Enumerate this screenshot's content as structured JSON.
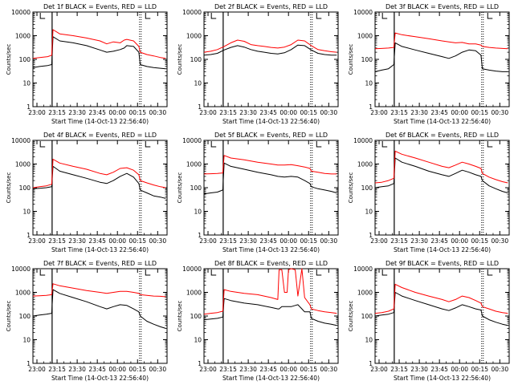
{
  "figure": {
    "colors": {
      "black_series": "#000000",
      "red_series": "#ff0000",
      "background": "#ffffff"
    }
  },
  "chart_data": [
    {
      "type": "line",
      "title": "Det 1f BLACK = Events, RED = LLD",
      "xlabel": "Start Time (14-Oct-13 22:56:40)",
      "ylabel": "Counts/sec",
      "x_ticks": [
        "23:00",
        "23:15",
        "23:30",
        "23:45",
        "00:00",
        "00:15",
        "00:30"
      ],
      "y_ticks": [
        "1",
        "10",
        "100",
        "1000",
        "10000"
      ],
      "yscale": "log",
      "ylim": [
        1,
        10000
      ],
      "grid": false,
      "x_minutes": [
        0,
        5,
        11,
        14,
        15,
        20,
        30,
        40,
        50,
        55,
        60,
        65,
        68,
        70,
        75,
        79,
        80,
        85,
        90,
        95,
        99
      ],
      "series": [
        {
          "color": "black",
          "values": [
            45,
            50,
            55,
            60,
            900,
            600,
            500,
            380,
            250,
            200,
            220,
            260,
            300,
            380,
            350,
            200,
            60,
            50,
            45,
            42,
            40
          ]
        },
        {
          "color": "red",
          "values": [
            110,
            120,
            130,
            150,
            1800,
            1200,
            1000,
            800,
            600,
            450,
            550,
            500,
            650,
            700,
            600,
            350,
            200,
            160,
            140,
            120,
            110
          ]
        }
      ]
    },
    {
      "type": "line",
      "title": "Det 2f BLACK = Events, RED = LLD",
      "xlabel": "Start Time (14-Oct-13 22:56:40)",
      "ylabel": "Counts/sec",
      "x_ticks": [
        "23:00",
        "23:15",
        "23:30",
        "23:45",
        "00:00",
        "00:15",
        "00:30"
      ],
      "y_ticks": [
        "1",
        "10",
        "100",
        "1000",
        "10000"
      ],
      "yscale": "log",
      "ylim": [
        1,
        10000
      ],
      "grid": false,
      "x_minutes": [
        0,
        5,
        10,
        15,
        20,
        25,
        30,
        35,
        40,
        45,
        50,
        55,
        60,
        65,
        70,
        75,
        80,
        85,
        90,
        95,
        99
      ],
      "series": [
        {
          "color": "black",
          "values": [
            150,
            160,
            180,
            250,
            320,
            380,
            330,
            260,
            220,
            200,
            180,
            170,
            190,
            260,
            400,
            380,
            250,
            180,
            160,
            150,
            150
          ]
        },
        {
          "color": "red",
          "values": [
            200,
            220,
            260,
            350,
            500,
            650,
            580,
            420,
            380,
            350,
            320,
            300,
            330,
            420,
            650,
            600,
            380,
            260,
            230,
            210,
            200
          ]
        }
      ]
    },
    {
      "type": "line",
      "title": "Det 3f BLACK = Events, RED = LLD",
      "xlabel": "Start Time (14-Oct-13 22:56:40)",
      "ylabel": "Counts/sec",
      "x_ticks": [
        "23:00",
        "23:15",
        "23:30",
        "23:45",
        "00:00",
        "00:15",
        "00:30"
      ],
      "y_ticks": [
        "1",
        "10",
        "100",
        "1000",
        "10000"
      ],
      "yscale": "log",
      "ylim": [
        1,
        10000
      ],
      "grid": false,
      "x_minutes": [
        0,
        5,
        10,
        14,
        15,
        20,
        30,
        40,
        50,
        55,
        60,
        65,
        70,
        75,
        79,
        80,
        85,
        90,
        95,
        99
      ],
      "series": [
        {
          "color": "black",
          "values": [
            30,
            35,
            40,
            60,
            500,
            350,
            250,
            180,
            130,
            110,
            140,
            200,
            250,
            230,
            150,
            40,
            35,
            32,
            30,
            30
          ]
        },
        {
          "color": "red",
          "values": [
            280,
            290,
            300,
            320,
            1300,
            1100,
            900,
            750,
            600,
            550,
            500,
            520,
            450,
            450,
            400,
            350,
            320,
            300,
            290,
            280
          ]
        }
      ]
    },
    {
      "type": "line",
      "title": "Det 4f BLACK = Events, RED = LLD",
      "xlabel": "Start Time (14-Oct-13 22:56:40)",
      "ylabel": "Counts/sec",
      "x_ticks": [
        "23:00",
        "23:15",
        "23:30",
        "23:45",
        "00:00",
        "00:15",
        "00:30"
      ],
      "y_ticks": [
        "1",
        "10",
        "100",
        "1000",
        "10000"
      ],
      "yscale": "log",
      "ylim": [
        1,
        10000
      ],
      "grid": false,
      "x_minutes": [
        0,
        5,
        10,
        14,
        15,
        20,
        30,
        40,
        50,
        55,
        60,
        65,
        70,
        75,
        79,
        80,
        85,
        90,
        95,
        99
      ],
      "series": [
        {
          "color": "black",
          "values": [
            90,
            95,
            100,
            110,
            800,
            500,
            350,
            250,
            170,
            150,
            200,
            300,
            400,
            280,
            150,
            80,
            60,
            45,
            40,
            35
          ]
        },
        {
          "color": "red",
          "values": [
            100,
            110,
            120,
            140,
            1600,
            1100,
            800,
            600,
            400,
            350,
            450,
            650,
            700,
            550,
            350,
            200,
            160,
            130,
            110,
            100
          ]
        }
      ]
    },
    {
      "type": "line",
      "title": "Det 5f BLACK = Events, RED = LLD",
      "xlabel": "Start Time (14-Oct-13 22:56:40)",
      "ylabel": "Counts/sec",
      "x_ticks": [
        "23:00",
        "23:15",
        "23:30",
        "23:45",
        "00:00",
        "00:15",
        "00:30"
      ],
      "y_ticks": [
        "1",
        "10",
        "100",
        "1000",
        "10000"
      ],
      "yscale": "log",
      "ylim": [
        1,
        10000
      ],
      "grid": false,
      "x_minutes": [
        0,
        5,
        10,
        14,
        15,
        20,
        30,
        40,
        50,
        55,
        60,
        65,
        70,
        75,
        79,
        80,
        85,
        90,
        95,
        99
      ],
      "series": [
        {
          "color": "black",
          "values": [
            55,
            60,
            65,
            80,
            1100,
            800,
            600,
            450,
            350,
            300,
            280,
            300,
            280,
            200,
            150,
            110,
            90,
            80,
            70,
            60
          ]
        },
        {
          "color": "red",
          "values": [
            380,
            390,
            400,
            420,
            2300,
            1800,
            1500,
            1200,
            1000,
            900,
            900,
            950,
            850,
            750,
            650,
            500,
            450,
            400,
            380,
            380
          ]
        }
      ]
    },
    {
      "type": "line",
      "title": "Det 6f BLACK = Events, RED = LLD",
      "xlabel": "Start Time (14-Oct-13 22:56:40)",
      "ylabel": "Counts/sec",
      "x_ticks": [
        "23:00",
        "23:15",
        "23:30",
        "23:45",
        "00:00",
        "00:15",
        "00:30"
      ],
      "y_ticks": [
        "1",
        "10",
        "100",
        "1000",
        "10000"
      ],
      "yscale": "log",
      "ylim": [
        1,
        10000
      ],
      "grid": false,
      "x_minutes": [
        0,
        5,
        10,
        14,
        15,
        20,
        30,
        40,
        50,
        55,
        60,
        65,
        70,
        75,
        79,
        80,
        85,
        90,
        95,
        99
      ],
      "series": [
        {
          "color": "black",
          "values": [
            100,
            110,
            120,
            150,
            1800,
            1200,
            800,
            500,
            350,
            300,
            400,
            550,
            450,
            350,
            300,
            200,
            120,
            90,
            70,
            60
          ]
        },
        {
          "color": "red",
          "values": [
            160,
            170,
            200,
            250,
            3500,
            2600,
            1800,
            1200,
            800,
            700,
            900,
            1200,
            1000,
            800,
            650,
            400,
            280,
            220,
            180,
            160
          ]
        }
      ]
    },
    {
      "type": "line",
      "title": "Det 7f BLACK = Events, RED = LLD",
      "xlabel": "Start Time (14-Oct-13 22:56:40)",
      "ylabel": "Counts/sec",
      "x_ticks": [
        "23:00",
        "23:15",
        "23:30",
        "23:45",
        "00:00",
        "00:15",
        "00:30"
      ],
      "y_ticks": [
        "1",
        "10",
        "100",
        "1000",
        "10000"
      ],
      "yscale": "log",
      "ylim": [
        1,
        10000
      ],
      "grid": false,
      "x_minutes": [
        0,
        5,
        10,
        14,
        15,
        20,
        30,
        40,
        50,
        55,
        60,
        65,
        70,
        75,
        79,
        80,
        85,
        90,
        95,
        99
      ],
      "series": [
        {
          "color": "black",
          "values": [
            100,
            110,
            120,
            130,
            1300,
            900,
            600,
            400,
            250,
            200,
            250,
            300,
            280,
            200,
            150,
            100,
            60,
            45,
            35,
            30
          ]
        },
        {
          "color": "red",
          "values": [
            700,
            720,
            750,
            800,
            2300,
            1900,
            1500,
            1200,
            1000,
            900,
            1000,
            1100,
            1100,
            1000,
            900,
            800,
            750,
            700,
            680,
            650
          ]
        }
      ]
    },
    {
      "type": "line",
      "title": "Det 8f BLACK = Events, RED = LLD",
      "xlabel": "Start Time (14-Oct-13 22:56:40)",
      "ylabel": "Counts/sec",
      "x_ticks": [
        "23:00",
        "23:15",
        "23:30",
        "23:45",
        "00:00",
        "00:15",
        "00:30"
      ],
      "y_ticks": [
        "1",
        "10",
        "100",
        "1000",
        "10000"
      ],
      "yscale": "log",
      "ylim": [
        1,
        10000
      ],
      "grid": false,
      "x_minutes": [
        0,
        5,
        10,
        14,
        15,
        20,
        30,
        40,
        50,
        55,
        56,
        58,
        60,
        62,
        63,
        65,
        68,
        70,
        73,
        75,
        79,
        80,
        85,
        90,
        95,
        99
      ],
      "series": [
        {
          "color": "black",
          "values": [
            70,
            75,
            80,
            90,
            550,
            450,
            350,
            300,
            230,
            200,
            200,
            250,
            250,
            250,
            250,
            250,
            280,
            300,
            200,
            150,
            150,
            80,
            60,
            50,
            45,
            40
          ]
        },
        {
          "color": "red",
          "values": [
            120,
            130,
            140,
            160,
            1300,
            1100,
            900,
            800,
            600,
            500,
            9000,
            9000,
            1000,
            1000,
            9000,
            10000,
            9000,
            700,
            10000,
            600,
            300,
            200,
            170,
            150,
            140,
            130
          ]
        }
      ]
    },
    {
      "type": "line",
      "title": "Det 9f BLACK = Events, RED = LLD",
      "xlabel": "Start Time (14-Oct-13 22:56:40)",
      "ylabel": "Counts/sec",
      "x_ticks": [
        "23:00",
        "23:15",
        "23:30",
        "23:45",
        "00:00",
        "00:15",
        "00:30"
      ],
      "y_ticks": [
        "1",
        "10",
        "100",
        "1000",
        "10000"
      ],
      "yscale": "log",
      "ylim": [
        1,
        10000
      ],
      "grid": false,
      "x_minutes": [
        0,
        5,
        10,
        14,
        15,
        20,
        30,
        40,
        50,
        55,
        60,
        65,
        70,
        75,
        79,
        80,
        85,
        90,
        95,
        99
      ],
      "series": [
        {
          "color": "black",
          "values": [
            100,
            110,
            120,
            140,
            1000,
            700,
            450,
            300,
            200,
            170,
            220,
            300,
            250,
            200,
            180,
            100,
            70,
            55,
            45,
            40
          ]
        },
        {
          "color": "red",
          "values": [
            130,
            140,
            160,
            200,
            2200,
            1600,
            1000,
            700,
            500,
            400,
            500,
            700,
            600,
            450,
            350,
            250,
            200,
            160,
            140,
            130
          ]
        }
      ]
    }
  ]
}
